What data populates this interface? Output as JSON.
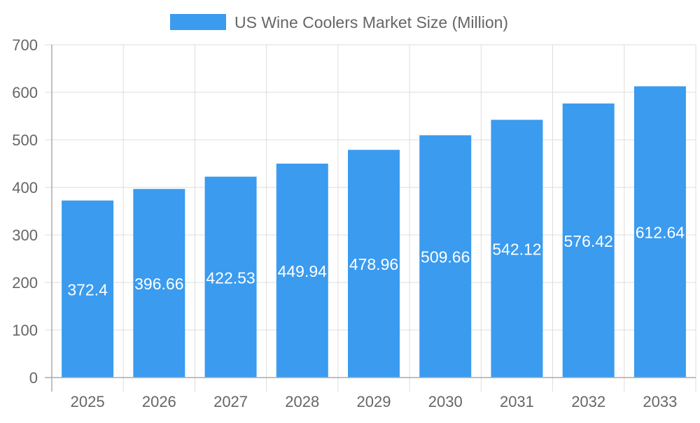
{
  "chart_data": {
    "type": "bar",
    "title": "",
    "xlabel": "",
    "ylabel": "",
    "categories": [
      "2025",
      "2026",
      "2027",
      "2028",
      "2029",
      "2030",
      "2031",
      "2032",
      "2033"
    ],
    "series": [
      {
        "name": "US Wine Coolers Market  Size (Million)",
        "values": [
          372.4,
          396.66,
          422.53,
          449.94,
          478.96,
          509.66,
          542.12,
          576.42,
          612.64
        ],
        "color": "#3a9bef"
      }
    ],
    "ylim": [
      0,
      700
    ],
    "yticks": [
      0,
      100,
      200,
      300,
      400,
      500,
      600,
      700
    ],
    "grid": true,
    "legend": "top",
    "data_labels": true
  }
}
